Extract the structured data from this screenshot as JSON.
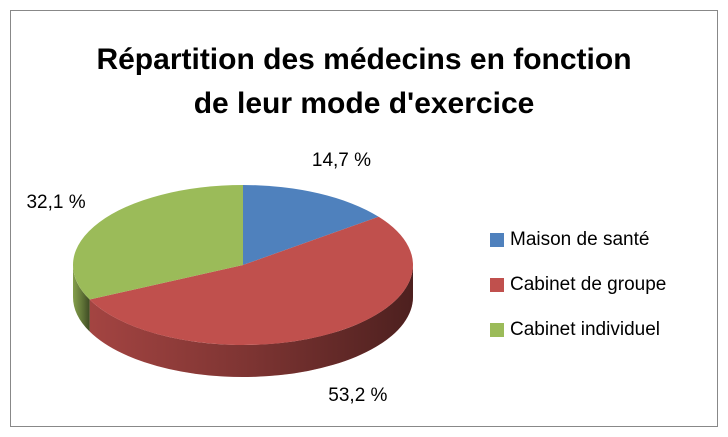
{
  "chart_data": {
    "type": "pie3d",
    "title": "Répartition des médecins en fonction de leur mode d'exercice",
    "categories": [
      "Maison de santé",
      "Cabinet de groupe",
      "Cabinet individuel"
    ],
    "values": [
      14.7,
      53.2,
      32.1
    ],
    "value_labels": [
      "14,7 %",
      "53,2 %",
      "32,1 %"
    ],
    "colors": [
      "#4f81bd",
      "#c0504d",
      "#9bbb59"
    ],
    "legend": "right"
  }
}
